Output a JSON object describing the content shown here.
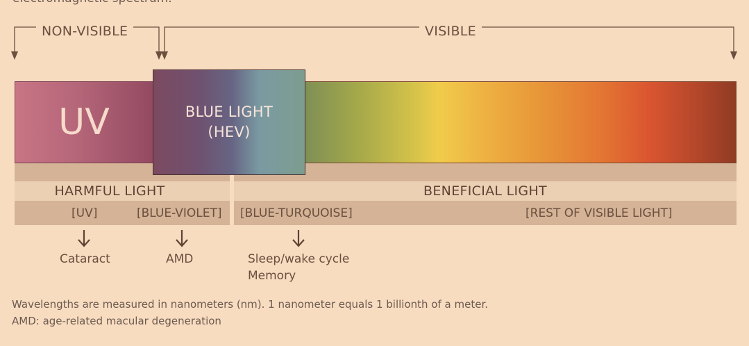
{
  "top_cut_text": "electromagnetic spectrum.",
  "sections": {
    "non_visible": "NON-VISIBLE",
    "visible": "VISIBLE"
  },
  "bands": {
    "uv": "UV",
    "blue_light_line1": "BLUE LIGHT",
    "blue_light_line2": "(HEV)"
  },
  "categories": {
    "harmful": "HARMFUL LIGHT",
    "beneficial": "BENEFICIAL LIGHT"
  },
  "subcategories": {
    "uv": "[UV]",
    "blue_violet": "[BLUE-VIOLET]",
    "blue_turquoise": "[BLUE-TURQUOISE]",
    "rest_visible": "[REST OF VISIBLE LIGHT]"
  },
  "effects": {
    "uv": "Cataract",
    "blue_violet": "AMD",
    "blue_turquoise_1": "Sleep/wake cycle",
    "blue_turquoise_2": "Memory"
  },
  "footnotes": {
    "line1": "Wavelengths are measured in nanometers (nm).  1 nanometer equals 1 billionth of a meter.",
    "line2": "AMD: age-related macular degeneration"
  },
  "colors": {
    "background": "#f8dcc0",
    "uv": "#b56679",
    "blue_light": "#676584",
    "strip_dark": "#d4b396",
    "strip_light": "#ecd0b4",
    "line": "#6b4f3f"
  }
}
